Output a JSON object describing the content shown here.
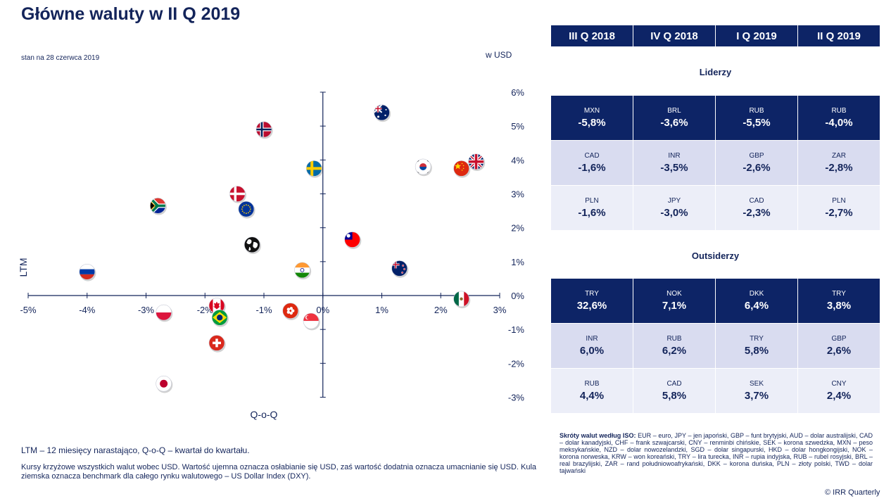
{
  "title": "Główne waluty w II Q 2019",
  "subtitle": "stan na 28 czerwca 2019",
  "colors": {
    "navy": "#0d2466",
    "mid": "#d9dcf0",
    "light": "#eceef8",
    "axis": "#13245a"
  },
  "chart_data": {
    "type": "scatter",
    "xlabel": "Q-o-Q",
    "ylabel": "LTM",
    "unit_label": "w USD",
    "xlim": [
      -5,
      3
    ],
    "ylim": [
      -3,
      6
    ],
    "x_ticks": [
      "-5%",
      "-4%",
      "-3%",
      "-2%",
      "-1%",
      "0%",
      "1%",
      "2%",
      "3%"
    ],
    "y_ticks": [
      "6%",
      "5%",
      "4%",
      "3%",
      "2%",
      "1%",
      "0%",
      "-1%",
      "-2%",
      "-3%"
    ],
    "points": [
      {
        "x": 1.0,
        "y": 5.4,
        "flag": "aud-flag-icon"
      },
      {
        "x": -1.0,
        "y": 4.9,
        "flag": "nok-flag-icon"
      },
      {
        "x": -0.15,
        "y": 3.75,
        "flag": "sek-flag-icon"
      },
      {
        "x": 1.7,
        "y": 3.8,
        "flag": "krw-flag-icon"
      },
      {
        "x": 2.35,
        "y": 3.75,
        "flag": "cny-flag-icon"
      },
      {
        "x": 2.6,
        "y": 3.95,
        "flag": "gbp-flag-icon"
      },
      {
        "x": -1.45,
        "y": 3.0,
        "flag": "dkk-flag-icon"
      },
      {
        "x": -2.8,
        "y": 2.65,
        "flag": "zar-flag-icon"
      },
      {
        "x": -1.3,
        "y": 2.55,
        "flag": "eur-flag-icon"
      },
      {
        "x": -1.2,
        "y": 1.5,
        "flag": "dxy-globe-icon"
      },
      {
        "x": 0.5,
        "y": 1.65,
        "flag": "twd-flag-icon"
      },
      {
        "x": 1.3,
        "y": 0.8,
        "flag": "nzd-flag-icon"
      },
      {
        "x": -0.35,
        "y": 0.75,
        "flag": "inr-flag-icon"
      },
      {
        "x": -4.0,
        "y": 0.7,
        "flag": "rub-flag-icon"
      },
      {
        "x": 2.35,
        "y": -0.1,
        "flag": "mxn-flag-icon"
      },
      {
        "x": -1.8,
        "y": -0.3,
        "flag": "cad-flag-icon"
      },
      {
        "x": -2.7,
        "y": -0.5,
        "flag": "pln-flag-icon"
      },
      {
        "x": -0.55,
        "y": -0.45,
        "flag": "hkd-flag-icon"
      },
      {
        "x": -1.75,
        "y": -0.65,
        "flag": "brl-flag-icon"
      },
      {
        "x": -0.2,
        "y": -0.75,
        "flag": "sgd-flag-icon"
      },
      {
        "x": -1.8,
        "y": -1.4,
        "flag": "chf-flag-icon"
      },
      {
        "x": -2.7,
        "y": -2.6,
        "flag": "jpy-flag-icon"
      }
    ]
  },
  "table": {
    "quarters": [
      "III Q 2018",
      "IV Q 2018",
      "I Q 2019",
      "II Q 2019"
    ],
    "leaders_title": "Liderzy",
    "leaders": [
      [
        {
          "code": "MXN",
          "value": "-5,8%"
        },
        {
          "code": "BRL",
          "value": "-3,6%"
        },
        {
          "code": "RUB",
          "value": "-5,5%"
        },
        {
          "code": "RUB",
          "value": "-4,0%"
        }
      ],
      [
        {
          "code": "CAD",
          "value": "-1,6%"
        },
        {
          "code": "INR",
          "value": "-3,5%"
        },
        {
          "code": "GBP",
          "value": "-2,6%"
        },
        {
          "code": "ZAR",
          "value": "-2,8%"
        }
      ],
      [
        {
          "code": "PLN",
          "value": "-1,6%"
        },
        {
          "code": "JPY",
          "value": "-3,0%"
        },
        {
          "code": "CAD",
          "value": "-2,3%"
        },
        {
          "code": "PLN",
          "value": "-2,7%"
        }
      ]
    ],
    "outsiders_title": "Outsiderzy",
    "outsiders": [
      [
        {
          "code": "TRY",
          "value": "32,6%"
        },
        {
          "code": "NOK",
          "value": "7,1%"
        },
        {
          "code": "DKK",
          "value": "6,4%"
        },
        {
          "code": "TRY",
          "value": "3,8%"
        }
      ],
      [
        {
          "code": "INR",
          "value": "6,0%"
        },
        {
          "code": "RUB",
          "value": "6,2%"
        },
        {
          "code": "TRY",
          "value": "5,8%"
        },
        {
          "code": "GBP",
          "value": "2,6%"
        }
      ],
      [
        {
          "code": "RUB",
          "value": "4,4%"
        },
        {
          "code": "CAD",
          "value": "5,8%"
        },
        {
          "code": "SEK",
          "value": "3,7%"
        },
        {
          "code": "CNY",
          "value": "2,4%"
        }
      ]
    ]
  },
  "abbreviations": {
    "label": "Skróty walut według ISO:",
    "text": " EUR – euro, JPY – jen japoński, GBP – funt brytyjski, AUD – dolar australijski, CAD – dolar kanadyjski, CHF – frank szwajcarski, CNY – renminbi chińskie, SEK – korona szwedzka, MXN – peso meksykańskie, NZD – dolar nowozelandzki, SGD – dolar singapurski, HKD – dolar hongkongijski, NOK – korona norweska, KRW – won koreański, TRY – lira turecka, INR – rupia indyjska, RUB – rubel rosyjski, BRL – real brazylijski, ZAR – rand południowoafrykański, DKK – korona duńska, PLN – złoty polski, TWD – dolar tajwański"
  },
  "footnote1": "LTM – 12 miesięcy narastająco, Q-o-Q – kwartał do kwartału.",
  "footnote2": "Kursy krzyżowe wszystkich walut wobec USD. Wartość ujemna oznacza osłabianie się USD, zaś wartość dodatnia oznacza umacnianie się USD. Kula ziemska oznacza benchmark dla całego rynku walutowego – US Dollar Index (DXY).",
  "copyright": "© IRR Quarterly"
}
